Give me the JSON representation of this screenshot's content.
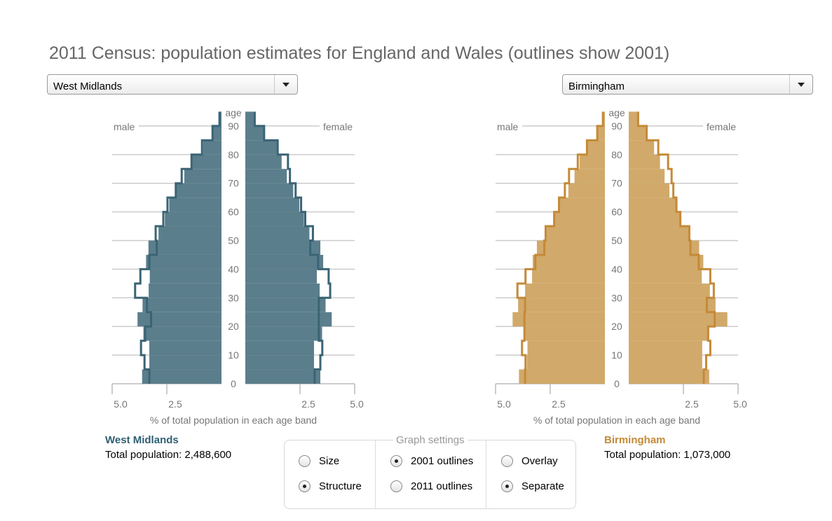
{
  "title": "2011 Census: population estimates for England and Wales (outlines show 2001)",
  "selects": [
    {
      "value": "West Midlands"
    },
    {
      "value": "Birmingham"
    }
  ],
  "settings": {
    "legend": "Graph settings",
    "groups": [
      [
        {
          "label": "Size",
          "checked": false
        },
        {
          "label": "Structure",
          "checked": true
        }
      ],
      [
        {
          "label": "2001 outlines",
          "checked": true
        },
        {
          "label": "2011 outlines",
          "checked": false
        }
      ],
      [
        {
          "label": "Overlay",
          "checked": false
        },
        {
          "label": "Separate",
          "checked": true
        }
      ]
    ]
  },
  "info": [
    {
      "name": "West Midlands",
      "total": "Total population: 2,488,600"
    },
    {
      "name": "Birmingham",
      "total": "Total population: 1,073,000"
    }
  ],
  "chart_data": [
    {
      "type": "bar",
      "orientation": "population-pyramid",
      "area": "West Midlands",
      "xlabel": "% of total population in each age band",
      "ylabel": "age",
      "left_label": "male",
      "right_label": "female",
      "xlim": [
        0,
        5.0
      ],
      "x_ticks": [
        "5.0",
        "2.5",
        "2.5",
        "5.0"
      ],
      "y_ticks": [
        "0",
        "10",
        "20",
        "30",
        "40",
        "50",
        "60",
        "70",
        "80",
        "90"
      ],
      "categories": [
        "0-4",
        "5-9",
        "10-14",
        "15-19",
        "20-24",
        "25-29",
        "30-34",
        "35-39",
        "40-44",
        "45-49",
        "50-54",
        "55-59",
        "60-64",
        "65-69",
        "70-74",
        "75-79",
        "80-84",
        "85-89",
        "90+"
      ],
      "fill_color": "#5b7e8c",
      "outline_color": "#3a6475",
      "series": [
        {
          "name": "male 2011",
          "values": [
            3.63,
            3.3,
            3.3,
            3.57,
            3.84,
            3.61,
            3.33,
            3.28,
            3.45,
            3.34,
            2.88,
            2.59,
            2.39,
            2.07,
            1.7,
            1.37,
            0.84,
            0.41,
            0.14
          ]
        },
        {
          "name": "male 2001",
          "values": [
            3.3,
            3.52,
            3.68,
            3.49,
            3.22,
            3.41,
            3.95,
            3.71,
            3.3,
            2.96,
            3.01,
            2.66,
            2.47,
            2.09,
            1.82,
            1.37,
            0.89,
            0.41,
            0.09
          ]
        },
        {
          "name": "female 2011",
          "values": [
            3.43,
            3.14,
            3.14,
            3.51,
            3.95,
            3.67,
            3.4,
            3.27,
            3.56,
            3.43,
            2.93,
            2.68,
            2.47,
            2.19,
            1.9,
            1.66,
            1.44,
            0.86,
            0.43
          ]
        },
        {
          "name": "female 2001",
          "values": [
            3.17,
            3.43,
            3.52,
            3.36,
            3.36,
            3.36,
            3.88,
            3.81,
            3.33,
            2.97,
            3.09,
            2.74,
            2.55,
            2.3,
            2.04,
            1.95,
            1.48,
            0.86,
            0.43
          ]
        }
      ]
    },
    {
      "type": "bar",
      "orientation": "population-pyramid",
      "area": "Birmingham",
      "xlabel": "% of total population in each age band",
      "ylabel": "age",
      "left_label": "male",
      "right_label": "female",
      "xlim": [
        0,
        5.0
      ],
      "x_ticks": [
        "5.0",
        "2.5",
        "2.5",
        "5.0"
      ],
      "y_ticks": [
        "0",
        "10",
        "20",
        "30",
        "40",
        "50",
        "60",
        "70",
        "80",
        "90"
      ],
      "categories": [
        "0-4",
        "5-9",
        "10-14",
        "15-19",
        "20-24",
        "25-29",
        "30-34",
        "35-39",
        "40-44",
        "45-49",
        "50-54",
        "55-59",
        "60-64",
        "65-69",
        "70-74",
        "75-79",
        "80-84",
        "85-89",
        "90+"
      ],
      "fill_color": "#d1a96a",
      "outline_color": "#c48a38",
      "series": [
        {
          "name": "male 2011",
          "values": [
            3.93,
            3.57,
            3.54,
            3.68,
            4.22,
            3.97,
            3.65,
            3.33,
            3.3,
            3.11,
            2.66,
            2.32,
            2.07,
            1.67,
            1.39,
            1.16,
            0.78,
            0.35,
            0.11
          ]
        },
        {
          "name": "male 2001",
          "values": [
            3.65,
            3.63,
            3.79,
            3.68,
            3.68,
            3.65,
            4.0,
            3.63,
            3.18,
            2.77,
            2.71,
            2.32,
            2.1,
            1.83,
            1.64,
            1.24,
            0.82,
            0.35,
            0.09
          ]
        },
        {
          "name": "female 2011",
          "values": [
            3.68,
            3.36,
            3.36,
            3.68,
            4.51,
            3.97,
            3.71,
            3.34,
            3.41,
            3.22,
            2.77,
            2.39,
            2.23,
            1.86,
            1.64,
            1.43,
            1.16,
            0.78,
            0.46
          ]
        },
        {
          "name": "female 2001",
          "values": [
            3.43,
            3.54,
            3.73,
            3.63,
            3.93,
            3.57,
            3.89,
            3.73,
            3.2,
            2.82,
            2.77,
            2.36,
            2.18,
            2.04,
            1.96,
            1.8,
            1.35,
            0.82,
            0.43
          ]
        }
      ]
    }
  ]
}
